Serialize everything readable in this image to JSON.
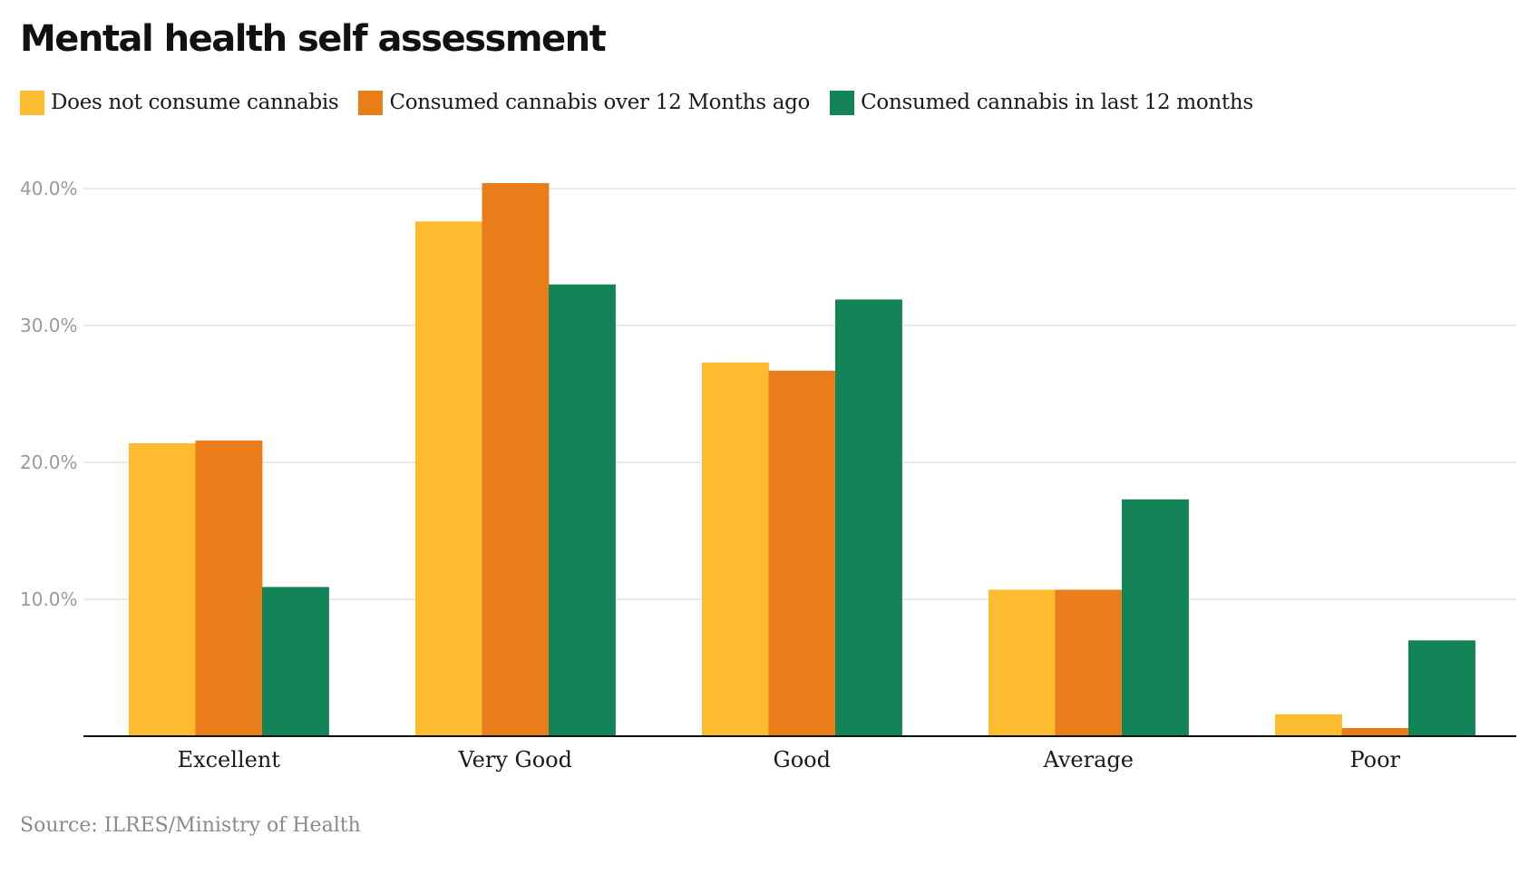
{
  "colors": {
    "series": [
      "#FDBB2F",
      "#E87D1A",
      "#138457"
    ],
    "grid": "#dcdcdc",
    "axis": "#111111",
    "tick_text": "#9a9a9a",
    "source_text": "#8a8a8a"
  },
  "chart_data": {
    "type": "bar",
    "title": "Mental health self assessment",
    "categories": [
      "Excellent",
      "Very Good",
      "Good",
      "Average",
      "Poor"
    ],
    "series": [
      {
        "name": "Does not consume cannabis",
        "values": [
          21.4,
          37.6,
          27.3,
          10.7,
          1.6
        ]
      },
      {
        "name": "Consumed cannabis over 12 Months ago",
        "values": [
          21.6,
          40.4,
          26.7,
          10.7,
          0.6
        ]
      },
      {
        "name": "Consumed cannabis in last 12 months",
        "values": [
          10.9,
          33.0,
          31.9,
          17.3,
          7.0
        ]
      }
    ],
    "yticks": [
      10,
      20,
      30,
      40
    ],
    "ytick_labels": [
      "10.0%",
      "20.0%",
      "30.0%",
      "40.0%"
    ],
    "ylim": [
      0,
      40.4
    ],
    "xlabel": "",
    "ylabel": "",
    "grid": true,
    "legend_position": "top-left",
    "source": "Source: ILRES/Ministry of Health"
  }
}
